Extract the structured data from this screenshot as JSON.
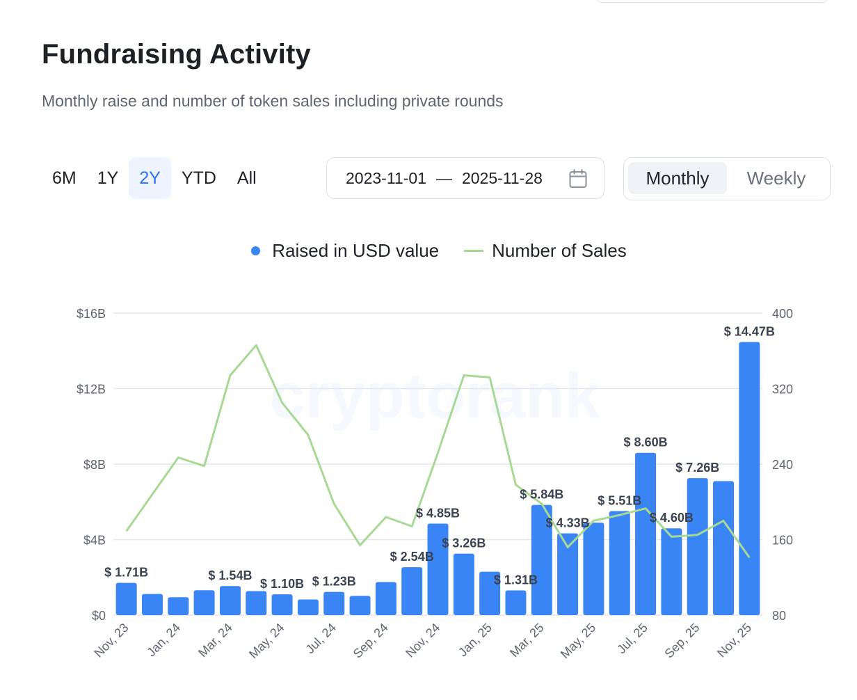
{
  "header": {
    "title": "Fundraising Activity",
    "subtitle": "Monthly raise and number of token sales including private rounds"
  },
  "range_tabs": [
    {
      "label": "6M",
      "active": false
    },
    {
      "label": "1Y",
      "active": false
    },
    {
      "label": "2Y",
      "active": true
    },
    {
      "label": "YTD",
      "active": false
    },
    {
      "label": "All",
      "active": false
    }
  ],
  "date_range": {
    "start": "2023-11-01",
    "separator": "—",
    "end": "2025-11-28",
    "icon": "calendar-icon"
  },
  "period_toggle": [
    {
      "label": "Monthly",
      "active": true
    },
    {
      "label": "Weekly",
      "active": false
    }
  ],
  "watermark": "cryptorank",
  "colors": {
    "bar": "#3a85f6",
    "line": "#a8d994",
    "accent": "#2f73f0",
    "grid": "#e4e7eb"
  },
  "chart_data": {
    "type": "bar",
    "categories": [
      "Nov, 23",
      "Dec, 23",
      "Jan, 24",
      "Feb, 24",
      "Mar, 24",
      "Apr, 24",
      "May, 24",
      "Jun, 24",
      "Jul, 24",
      "Aug, 24",
      "Sep, 24",
      "Oct, 24",
      "Nov, 24",
      "Dec, 24",
      "Jan, 25",
      "Feb, 25",
      "Mar, 25",
      "Apr, 25",
      "May, 25",
      "Jun, 25",
      "Jul, 25",
      "Aug, 25",
      "Sep, 25",
      "Oct, 25",
      "Nov, 25"
    ],
    "x_tick_labels": [
      "Nov, 23",
      "Jan, 24",
      "Mar, 24",
      "May, 24",
      "Jul, 24",
      "Sep, 24",
      "Nov, 24",
      "Jan, 25",
      "Mar, 25",
      "May, 25",
      "Jul, 25",
      "Sep, 25",
      "Nov, 25"
    ],
    "series": [
      {
        "name": "Raised in USD value",
        "type": "bar",
        "axis": "left",
        "values": [
          1.71,
          1.12,
          0.95,
          1.32,
          1.54,
          1.27,
          1.1,
          0.83,
          1.23,
          1.02,
          1.75,
          2.54,
          4.85,
          3.26,
          2.3,
          1.31,
          5.84,
          4.33,
          4.9,
          5.51,
          8.6,
          4.6,
          7.26,
          7.1,
          14.47
        ]
      },
      {
        "name": "Number of Sales",
        "type": "line",
        "axis": "right",
        "values": [
          169,
          208,
          247,
          238,
          334,
          366,
          305,
          271,
          198,
          154,
          184,
          174,
          252,
          334,
          332,
          218,
          198,
          152,
          180,
          186,
          193,
          163,
          165,
          180,
          141
        ]
      }
    ],
    "data_labels": [
      {
        "index": 0,
        "text": "$ 1.71B"
      },
      {
        "index": 4,
        "text": "$ 1.54B"
      },
      {
        "index": 6,
        "text": "$ 1.10B"
      },
      {
        "index": 8,
        "text": "$ 1.23B"
      },
      {
        "index": 11,
        "text": "$ 2.54B"
      },
      {
        "index": 12,
        "text": "$ 4.85B"
      },
      {
        "index": 13,
        "text": "$ 3.26B"
      },
      {
        "index": 15,
        "text": "$ 1.31B"
      },
      {
        "index": 16,
        "text": "$ 5.84B"
      },
      {
        "index": 17,
        "text": "$ 4.33B"
      },
      {
        "index": 19,
        "text": "$ 5.51B"
      },
      {
        "index": 20,
        "text": "$ 8.60B"
      },
      {
        "index": 21,
        "text": "$ 4.60B"
      },
      {
        "index": 22,
        "text": "$ 7.26B"
      },
      {
        "index": 24,
        "text": "$ 14.47B"
      }
    ],
    "y_left": {
      "ticks": [
        0,
        4,
        8,
        12,
        16
      ],
      "tick_labels": [
        "$0",
        "$4B",
        "$8B",
        "$12B",
        "$16B"
      ],
      "ylim": [
        0,
        16
      ]
    },
    "y_right": {
      "ticks": [
        80,
        160,
        240,
        320,
        400
      ],
      "tick_labels": [
        "80",
        "160",
        "240",
        "320",
        "400"
      ],
      "ylim": [
        80,
        400
      ]
    },
    "legend_position": "top-center",
    "grid": true
  }
}
